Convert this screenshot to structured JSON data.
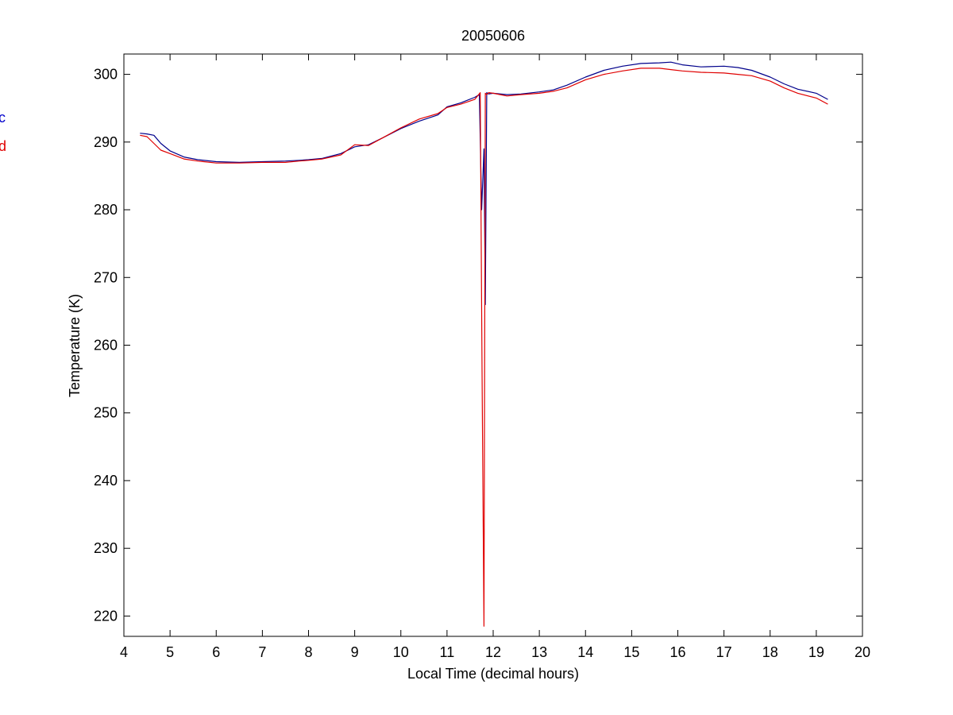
{
  "chart_data": {
    "type": "line",
    "title": "20050606",
    "xlabel": "Local Time (decimal hours)",
    "ylabel": "Temperature (K)",
    "xlim": [
      4,
      20
    ],
    "ylim": [
      217,
      303
    ],
    "xticks": [
      "4",
      "5",
      "6",
      "7",
      "8",
      "9",
      "10",
      "11",
      "12",
      "13",
      "14",
      "15",
      "16",
      "17",
      "18",
      "19",
      "20"
    ],
    "yticks": [
      "220",
      "230",
      "240",
      "250",
      "260",
      "270",
      "280",
      "290",
      "300"
    ],
    "grid": false,
    "legend": {
      "placement": "left-outside",
      "entries": [
        {
          "text": "c",
          "color": "#0000cc"
        },
        {
          "text": "d",
          "color": "#e00000"
        }
      ]
    },
    "series": [
      {
        "color": "#00008b",
        "x": [
          4.35,
          4.5,
          4.65,
          4.8,
          5.0,
          5.3,
          5.6,
          6.0,
          6.5,
          7.0,
          7.5,
          7.8,
          8.0,
          8.3,
          8.7,
          9.0,
          9.3,
          9.6,
          10.0,
          10.4,
          10.8,
          11.0,
          11.3,
          11.6,
          11.7,
          11.75,
          11.8,
          11.83,
          11.86,
          11.9,
          12.0,
          12.3,
          12.6,
          13.0,
          13.3,
          13.6,
          14.0,
          14.4,
          14.8,
          15.2,
          15.6,
          15.85,
          16.1,
          16.5,
          17.0,
          17.3,
          17.6,
          18.0,
          18.3,
          18.6,
          19.0,
          19.25
        ],
        "y": [
          291.3,
          291.2,
          291.0,
          289.8,
          288.7,
          287.8,
          287.4,
          287.1,
          287.0,
          287.1,
          287.2,
          287.3,
          287.4,
          287.6,
          288.3,
          289.3,
          289.6,
          290.6,
          292.0,
          293.1,
          294.0,
          295.2,
          295.8,
          296.6,
          297.0,
          280.0,
          289.0,
          266.0,
          297.3,
          297.1,
          297.2,
          297.0,
          297.1,
          297.4,
          297.7,
          298.4,
          299.6,
          300.6,
          301.2,
          301.6,
          301.7,
          301.8,
          301.4,
          301.1,
          301.2,
          301.0,
          300.6,
          299.6,
          298.6,
          297.8,
          297.2,
          296.3
        ]
      },
      {
        "color": "#e00000",
        "x": [
          4.35,
          4.5,
          4.65,
          4.8,
          5.0,
          5.3,
          5.6,
          6.0,
          6.5,
          7.0,
          7.5,
          7.8,
          8.0,
          8.3,
          8.7,
          9.0,
          9.3,
          9.6,
          10.0,
          10.4,
          10.8,
          11.0,
          11.3,
          11.6,
          11.72,
          11.76,
          11.8,
          11.83,
          11.86,
          11.9,
          12.0,
          12.3,
          12.6,
          13.0,
          13.3,
          13.6,
          14.0,
          14.4,
          14.8,
          15.2,
          15.6,
          15.85,
          16.1,
          16.5,
          17.0,
          17.3,
          17.6,
          18.0,
          18.3,
          18.6,
          19.0,
          19.25
        ],
        "y": [
          291.0,
          290.8,
          289.8,
          288.8,
          288.3,
          287.5,
          287.2,
          286.9,
          286.9,
          287.0,
          287.0,
          287.2,
          287.3,
          287.5,
          288.1,
          289.6,
          289.5,
          290.6,
          292.1,
          293.4,
          294.2,
          295.1,
          295.6,
          296.3,
          297.3,
          256.0,
          218.5,
          297.2,
          297.0,
          297.3,
          297.2,
          296.8,
          297.0,
          297.2,
          297.5,
          298.0,
          299.2,
          300.0,
          300.5,
          300.9,
          300.9,
          300.7,
          300.5,
          300.3,
          300.2,
          300.0,
          299.8,
          299.0,
          298.0,
          297.2,
          296.5,
          295.6
        ]
      }
    ]
  }
}
